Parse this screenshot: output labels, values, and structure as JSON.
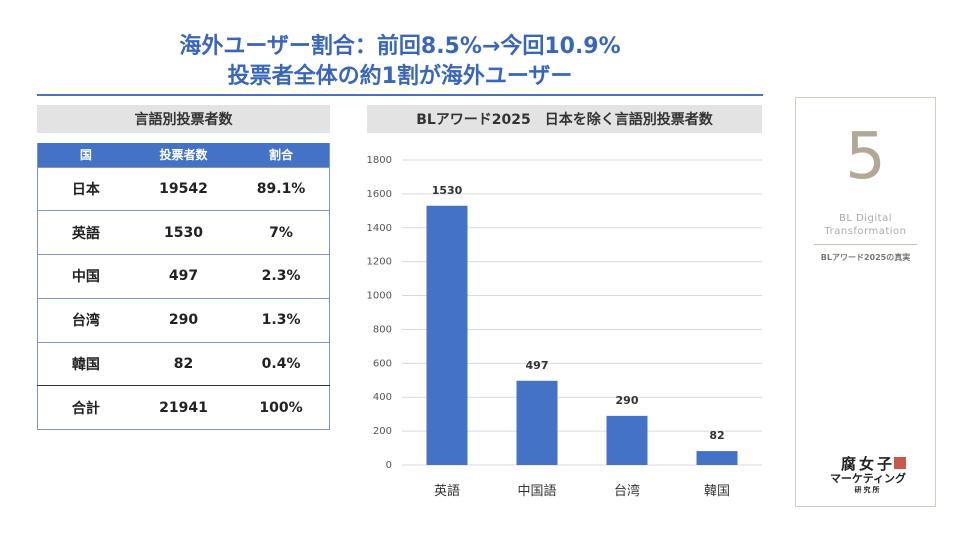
{
  "headline": {
    "line1": "海外ユーザー割合：前回8.5%→今回10.9%",
    "line2": "投票者全体の約1割が海外ユーザー"
  },
  "table": {
    "header": "言語別投票者数",
    "columns": [
      "国",
      "投票者数",
      "割合"
    ],
    "rows": [
      [
        "日本",
        "19542",
        "89.1%"
      ],
      [
        "英語",
        "1530",
        "7%"
      ],
      [
        "中国",
        "497",
        "2.3%"
      ],
      [
        "台湾",
        "290",
        "1.3%"
      ],
      [
        "韓国",
        "82",
        "0.4%"
      ]
    ],
    "total": [
      "合計",
      "21941",
      "100%"
    ]
  },
  "chart_header": "BLアワード2025　日本を除く言語別投票者数",
  "chart_data": {
    "type": "bar",
    "title": "BLアワード2025　日本を除く言語別投票者数",
    "categories": [
      "英語",
      "中国語",
      "台湾",
      "韓国"
    ],
    "values": [
      1530,
      497,
      290,
      82
    ],
    "ylim": [
      0,
      1800
    ],
    "yticks": [
      0,
      200,
      400,
      600,
      800,
      1000,
      1200,
      1400,
      1600,
      1800
    ],
    "xlabel": "",
    "ylabel": "",
    "grid": true,
    "bar_color": "#4472c4"
  },
  "side_card": {
    "number": "5",
    "brand_line1": "BL Digital",
    "brand_line2": "Transformation",
    "tag": "BLアワード2025の真実",
    "logo_line1": "腐女子",
    "logo_line2": "マーケティング",
    "logo_line3": "研究所"
  },
  "colors": {
    "accent": "#3a66b8",
    "bar": "#4472c4",
    "table_header": "#4472c4",
    "card_number": "#b2a898"
  }
}
